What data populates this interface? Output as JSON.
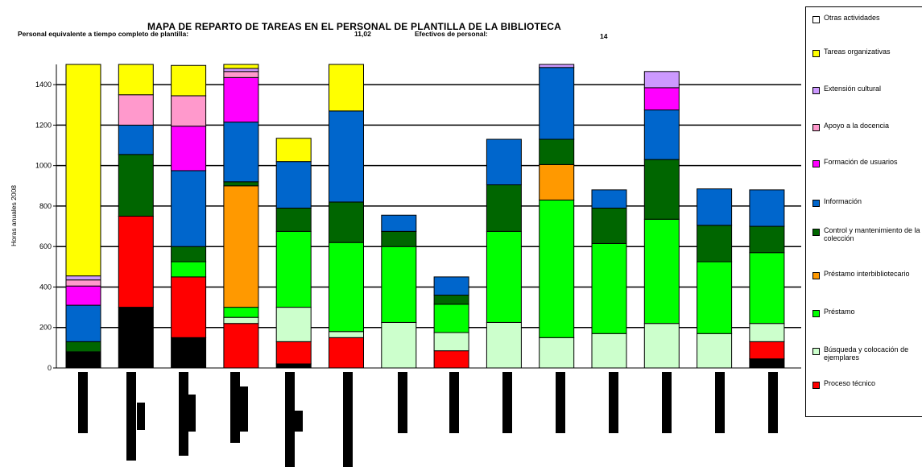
{
  "header": {
    "title": "MAPA DE REPARTO DE TAREAS EN EL PERSONAL DE PLANTILLA DE LA BIBLIOTECA",
    "fte_label": "Personal equivalente a tiempo completo de plantilla:",
    "fte_value": "11,02",
    "staff_label": "Efectivos de personal:",
    "staff_value": "14"
  },
  "colors": {
    "Proceso técnico": "#ff0000",
    "Búsqueda y colocación de ejemplares": "#ccffcc",
    "Préstamo": "#00ff00",
    "Préstamo interbibliotecario": "#ff9900",
    "Control y mantenimiento de la colección": "#006600",
    "Información": "#0066cc",
    "Formación de usuarios": "#ff00ff",
    "Apoyo a la docencia": "#ff99cc",
    "Extensión cultural": "#cc99ff",
    "Tareas organizativas": "#ffff00",
    "Otras actividades": "#ffffff",
    "Unlabeled base": "#000000"
  },
  "chart_data": {
    "type": "bar",
    "stacked": true,
    "title": "MAPA DE REPARTO DE TAREAS EN EL PERSONAL DE PLANTILLA DE LA BIBLIOTECA",
    "ylabel": "Horas anuales 2008",
    "xlabel": "",
    "ylim": [
      0,
      1500
    ],
    "yticks": [
      0,
      200,
      400,
      600,
      800,
      1000,
      1200,
      1400
    ],
    "grid": true,
    "legend_position": "right",
    "categories": [
      "1",
      "2",
      "3",
      "4",
      "5",
      "6",
      "7",
      "8",
      "9",
      "10",
      "11",
      "12",
      "13",
      "14"
    ],
    "series": [
      {
        "name": "",
        "color_key": "Unlabeled base",
        "values": [
          80,
          300,
          150,
          0,
          20,
          0,
          0,
          0,
          0,
          0,
          0,
          0,
          0,
          45
        ]
      },
      {
        "name": "Proceso técnico",
        "values": [
          0,
          450,
          300,
          220,
          110,
          150,
          0,
          85,
          0,
          0,
          0,
          0,
          0,
          85
        ]
      },
      {
        "name": "Búsqueda y colocación de ejemplares",
        "values": [
          0,
          0,
          0,
          30,
          170,
          30,
          225,
          90,
          225,
          150,
          170,
          220,
          170,
          90
        ]
      },
      {
        "name": "Préstamo",
        "values": [
          0,
          0,
          75,
          50,
          375,
          440,
          375,
          140,
          450,
          680,
          445,
          515,
          355,
          350
        ]
      },
      {
        "name": "Préstamo interbibliotecario",
        "values": [
          0,
          0,
          0,
          600,
          0,
          0,
          0,
          0,
          0,
          175,
          0,
          0,
          0,
          0
        ]
      },
      {
        "name": "Control y mantenimiento de la colección",
        "values": [
          50,
          305,
          75,
          20,
          115,
          200,
          75,
          45,
          230,
          125,
          175,
          295,
          180,
          130
        ]
      },
      {
        "name": "Información",
        "values": [
          180,
          145,
          375,
          295,
          230,
          450,
          80,
          90,
          225,
          355,
          90,
          245,
          180,
          180
        ]
      },
      {
        "name": "Formación de usuarios",
        "values": [
          95,
          0,
          220,
          220,
          0,
          0,
          0,
          0,
          0,
          0,
          0,
          110,
          0,
          0
        ]
      },
      {
        "name": "Apoyo a la docencia",
        "values": [
          30,
          150,
          150,
          30,
          0,
          0,
          0,
          0,
          0,
          0,
          0,
          0,
          0,
          0
        ]
      },
      {
        "name": "Extensión cultural",
        "values": [
          20,
          0,
          0,
          15,
          0,
          0,
          0,
          0,
          0,
          15,
          0,
          80,
          0,
          0
        ]
      },
      {
        "name": "Tareas organizativas",
        "values": [
          1045,
          150,
          150,
          20,
          115,
          230,
          0,
          0,
          0,
          0,
          0,
          0,
          0,
          0
        ]
      },
      {
        "name": "Otras actividades",
        "values": [
          0,
          0,
          0,
          0,
          0,
          0,
          0,
          0,
          0,
          0,
          0,
          0,
          0,
          0
        ]
      }
    ]
  },
  "legend": [
    "Otras actividades",
    "Tareas organizativas",
    "Extensión cultural",
    "Apoyo a la docencia",
    "Formación de usuarios",
    "Información",
    "Control y mantenimiento de la colección",
    "Préstamo interbibliotecario",
    "Préstamo",
    "Búsqueda y colocación de ejemplares",
    "Proceso técnico"
  ]
}
